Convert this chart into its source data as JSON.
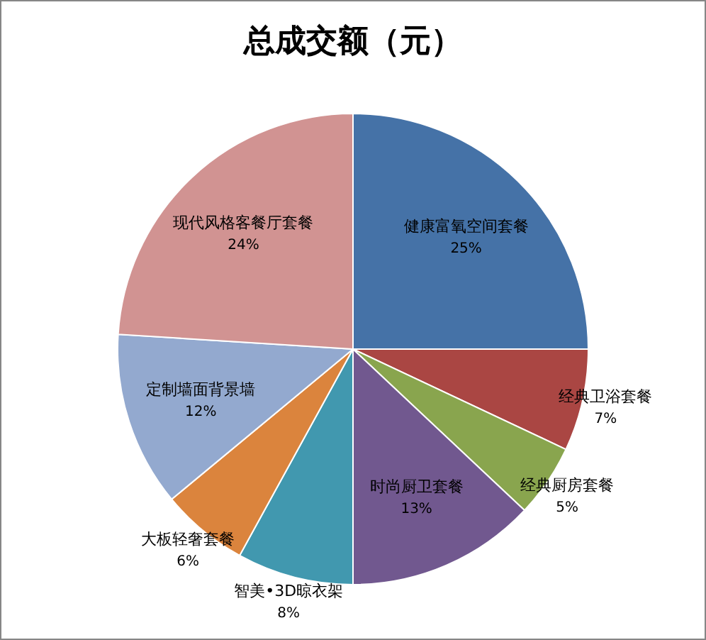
{
  "chart_data": {
    "type": "pie",
    "title": "总成交额（元）",
    "categories": [
      "健康富氧空间套餐",
      "经典卫浴套餐",
      "经典厨房套餐",
      "时尚厨卫套餐",
      "智美•3D晾衣架",
      "大板轻奢套餐",
      "定制墙面背景墙",
      "现代风格客餐厅套餐"
    ],
    "values": [
      25,
      7,
      5,
      13,
      8,
      6,
      12,
      24
    ],
    "colors": [
      "#4572a7",
      "#aa4643",
      "#89a54e",
      "#71588f",
      "#4198af",
      "#db843d",
      "#93a9cf",
      "#d19392"
    ],
    "value_labels": [
      "25%",
      "7%",
      "5%",
      "13%",
      "8%",
      "6%",
      "12%",
      "24%"
    ]
  }
}
